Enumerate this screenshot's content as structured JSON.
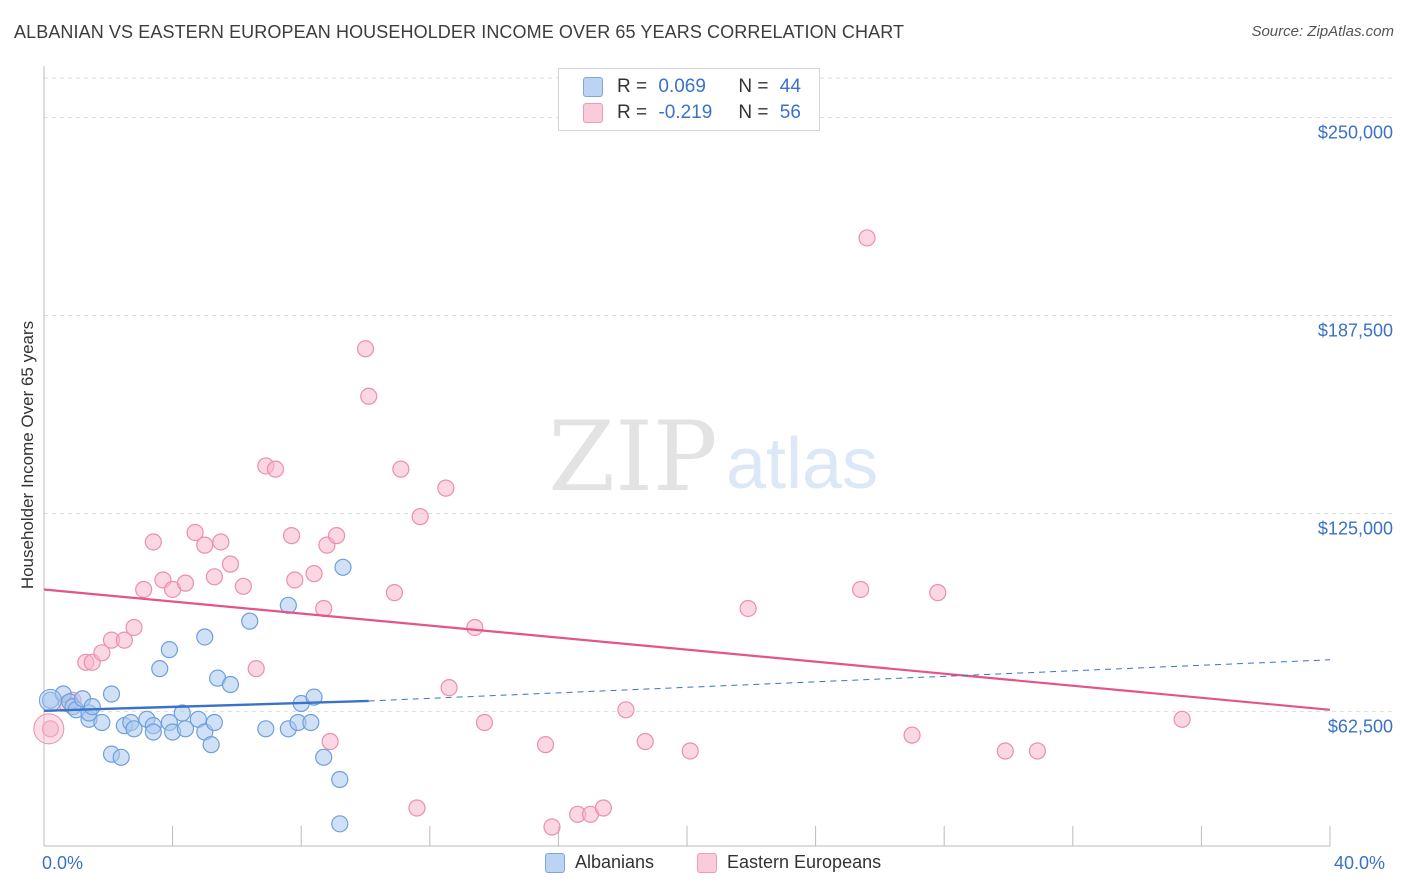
{
  "title": "ALBANIAN VS EASTERN EUROPEAN HOUSEHOLDER INCOME OVER 65 YEARS CORRELATION CHART",
  "source": "Source: ZipAtlas.com",
  "watermark": {
    "zip": "ZIP",
    "atlas": "atlas"
  },
  "legend_top": {
    "rows": [
      {
        "r_label": "R =",
        "r_value": "0.069",
        "n_label": "N =",
        "n_value": "44"
      },
      {
        "r_label": "R =",
        "r_value": "-0.219",
        "n_label": "N =",
        "n_value": "56"
      }
    ]
  },
  "colors": {
    "blue": "#3a72c8",
    "blue_fill": "#a9c8ee",
    "blue_stroke": "#6f9fdc",
    "pink": "#e2548a",
    "pink_fill": "#f5b7cb",
    "pink_stroke": "#eb8fb0",
    "grid": "#dddddd"
  },
  "chart_data": {
    "type": "scatter",
    "title": "ALBANIAN VS EASTERN EUROPEAN HOUSEHOLDER INCOME OVER 65 YEARS CORRELATION CHART",
    "xlabel": "",
    "ylabel": "Householder Income Over 65 years",
    "xlim": [
      0,
      40
    ],
    "ylim": [
      20000,
      262500
    ],
    "x_tick_labels": [
      "0.0%",
      "40.0%"
    ],
    "y_ticks": [
      62500,
      125000,
      187500,
      250000
    ],
    "y_tick_labels": [
      "$62,500",
      "$125,000",
      "$187,500",
      "$250,000"
    ],
    "grid": true,
    "legend_position": "top-center",
    "series": [
      {
        "name": "Albanians",
        "r": 0.069,
        "n": 44,
        "trend": {
          "x0": 0,
          "y0": 62700,
          "x1": 10.1,
          "y1": 65800,
          "dashed_x1": 40,
          "dashed_y1": 78800
        },
        "points": [
          [
            0.2,
            66000
          ],
          [
            0.6,
            68000
          ],
          [
            0.8,
            65500
          ],
          [
            0.9,
            64000
          ],
          [
            1.0,
            63000
          ],
          [
            1.2,
            66500
          ],
          [
            1.4,
            60000
          ],
          [
            1.4,
            62000
          ],
          [
            1.5,
            64000
          ],
          [
            1.8,
            59000
          ],
          [
            2.1,
            68000
          ],
          [
            2.1,
            49000
          ],
          [
            2.4,
            48000
          ],
          [
            2.5,
            58000
          ],
          [
            2.7,
            59000
          ],
          [
            2.8,
            57000
          ],
          [
            3.2,
            60000
          ],
          [
            3.4,
            58000
          ],
          [
            3.4,
            56000
          ],
          [
            3.6,
            76000
          ],
          [
            3.9,
            82000
          ],
          [
            3.9,
            59000
          ],
          [
            4.0,
            56000
          ],
          [
            4.4,
            57000
          ],
          [
            4.3,
            62000
          ],
          [
            4.8,
            60000
          ],
          [
            5.0,
            86000
          ],
          [
            5.0,
            56000
          ],
          [
            5.2,
            52000
          ],
          [
            5.3,
            59000
          ],
          [
            5.4,
            73000
          ],
          [
            5.8,
            71000
          ],
          [
            6.4,
            91000
          ],
          [
            6.9,
            57000
          ],
          [
            7.6,
            96000
          ],
          [
            7.6,
            57000
          ],
          [
            7.9,
            59000
          ],
          [
            8.0,
            65000
          ],
          [
            8.4,
            67000
          ],
          [
            8.3,
            59000
          ],
          [
            8.7,
            48000
          ],
          [
            9.2,
            41000
          ],
          [
            9.2,
            27000
          ],
          [
            9.3,
            108000
          ]
        ]
      },
      {
        "name": "Eastern Europeans",
        "r": -0.219,
        "n": 56,
        "trend": {
          "x0": 0,
          "y0": 101000,
          "x1": 40,
          "y1": 63000
        },
        "points": [
          [
            0.2,
            57000
          ],
          [
            0.7,
            65000
          ],
          [
            0.9,
            66000
          ],
          [
            1.3,
            78000
          ],
          [
            1.5,
            78000
          ],
          [
            1.8,
            81000
          ],
          [
            2.1,
            85000
          ],
          [
            2.5,
            85000
          ],
          [
            2.8,
            89000
          ],
          [
            3.1,
            101000
          ],
          [
            3.4,
            116000
          ],
          [
            3.7,
            104000
          ],
          [
            4.0,
            101000
          ],
          [
            4.4,
            103000
          ],
          [
            4.7,
            119000
          ],
          [
            5.0,
            115000
          ],
          [
            5.3,
            105000
          ],
          [
            5.5,
            116000
          ],
          [
            5.8,
            109000
          ],
          [
            6.2,
            102000
          ],
          [
            6.6,
            76000
          ],
          [
            6.9,
            140000
          ],
          [
            7.2,
            139000
          ],
          [
            7.7,
            118000
          ],
          [
            7.8,
            104000
          ],
          [
            8.4,
            106000
          ],
          [
            8.7,
            95000
          ],
          [
            8.8,
            115000
          ],
          [
            9.1,
            118000
          ],
          [
            8.9,
            53000
          ],
          [
            10.0,
            177000
          ],
          [
            10.1,
            162000
          ],
          [
            10.9,
            100000
          ],
          [
            11.1,
            139000
          ],
          [
            11.6,
            32000
          ],
          [
            11.7,
            124000
          ],
          [
            12.5,
            133000
          ],
          [
            12.6,
            70000
          ],
          [
            13.4,
            89000
          ],
          [
            13.7,
            59000
          ],
          [
            15.6,
            52000
          ],
          [
            15.8,
            26000
          ],
          [
            16.6,
            30000
          ],
          [
            17.0,
            30000
          ],
          [
            17.4,
            32000
          ],
          [
            18.1,
            63000
          ],
          [
            18.7,
            53000
          ],
          [
            20.1,
            50000
          ],
          [
            21.9,
            95000
          ],
          [
            25.4,
            101000
          ],
          [
            25.6,
            212000
          ],
          [
            27.0,
            55000
          ],
          [
            27.8,
            100000
          ],
          [
            29.9,
            50000
          ],
          [
            30.9,
            50000
          ],
          [
            35.4,
            60000
          ]
        ]
      }
    ]
  },
  "bottom_legend": {
    "blue": "Albanians",
    "pink": "Eastern Europeans"
  },
  "x_axis": {
    "left": "0.0%",
    "right": "40.0%"
  }
}
